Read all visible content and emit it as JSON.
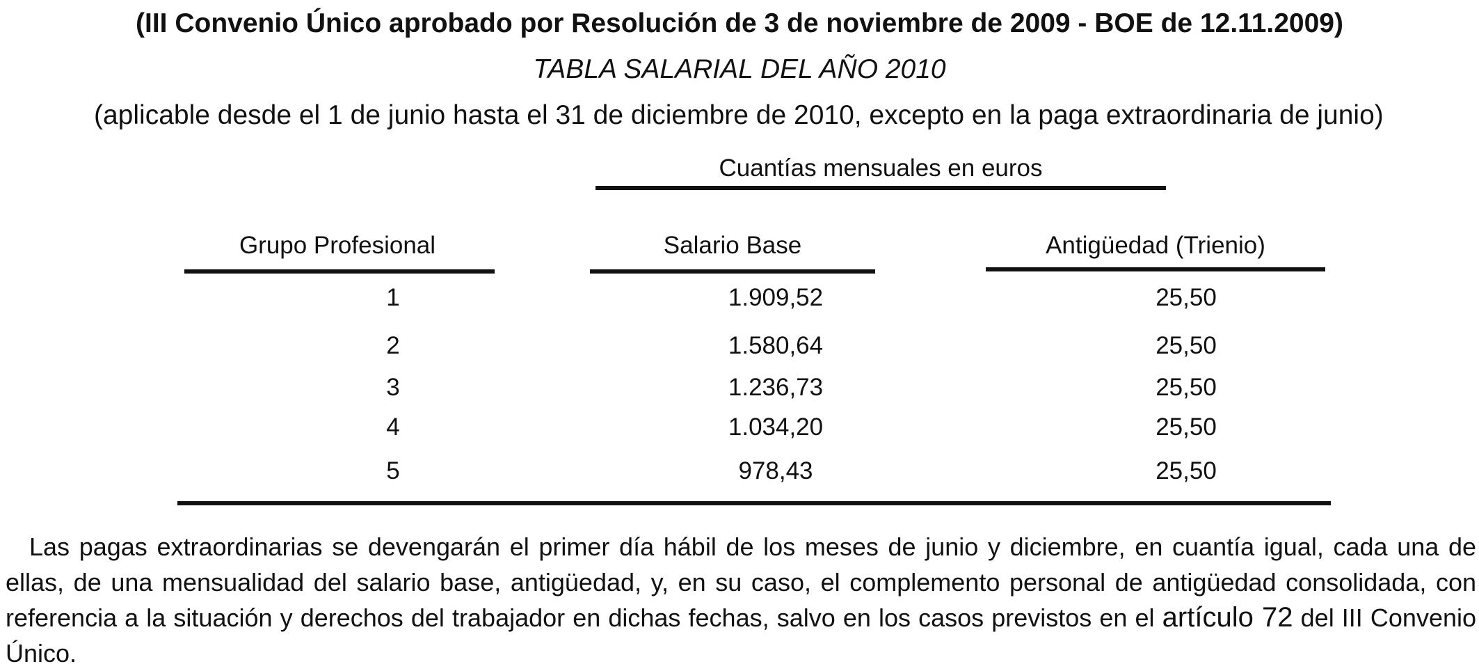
{
  "header": {
    "title": "(III Convenio Único aprobado por Resolución de 3 de noviembre de 2009 - BOE de 12.11.2009)",
    "subtitle": "TABLA SALARIAL DEL AÑO 2010",
    "applicability": "(aplicable desde el 1 de junio hasta el 31 de diciembre de 2010, excepto en la paga extraordinaria de junio)"
  },
  "table": {
    "units_caption": "Cuantías mensuales en euros",
    "columns": [
      "Grupo Profesional",
      "Salario Base",
      "Antigüedad (Trienio)"
    ],
    "rows": [
      {
        "grupo": "1",
        "salario_base": "1.909,52",
        "antiguedad": "25,50"
      },
      {
        "grupo": "2",
        "salario_base": "1.580,64",
        "antiguedad": "25,50"
      },
      {
        "grupo": "3",
        "salario_base": "1.236,73",
        "antiguedad": "25,50"
      },
      {
        "grupo": "4",
        "salario_base": "1.034,20",
        "antiguedad": "25,50"
      },
      {
        "grupo": "5",
        "salario_base": "978,43",
        "antiguedad": "25,50"
      }
    ]
  },
  "footer_text": {
    "before_link": "Las pagas extraordinarias se devengarán el primer día hábil de los meses de junio y diciembre, en cuantía igual, cada una de ellas, de una mensualidad del salario base, antigüedad, y, en su caso, el complemento personal de antigüedad consolidada, con referencia a la situación y derechos del trabajador en dichas fechas, salvo en los casos previstos en el",
    "link": "artículo 72",
    "after_link": "del III Convenio Único."
  }
}
